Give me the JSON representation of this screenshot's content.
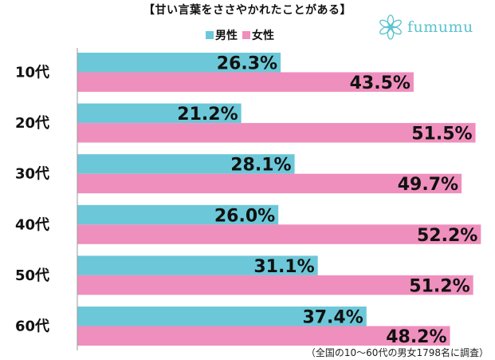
{
  "title": "【甘い言葉をささやかれたことがある】",
  "brand": "fumumu",
  "footnote": "（全国の10〜60代の男女1798名に調査）",
  "colors": {
    "male": "#6cc8d8",
    "female": "#ef8fbd"
  },
  "chart_data": {
    "type": "bar",
    "orientation": "horizontal",
    "categories": [
      "10代",
      "20代",
      "30代",
      "40代",
      "50代",
      "60代"
    ],
    "series": [
      {
        "name": "男性",
        "values": [
          26.3,
          21.2,
          28.1,
          26.0,
          31.1,
          37.4
        ]
      },
      {
        "name": "女性",
        "values": [
          43.5,
          51.5,
          49.7,
          52.2,
          51.2,
          48.2
        ]
      }
    ],
    "value_labels": {
      "男性": [
        "26.3%",
        "21.2%",
        "28.1%",
        "26.0%",
        "31.1%",
        "37.4%"
      ],
      "女性": [
        "43.5%",
        "51.5%",
        "49.7%",
        "52.2%",
        "51.2%",
        "48.2%"
      ]
    },
    "title": "【甘い言葉をささやかれたことがある】",
    "legend_position": "top",
    "grid": false
  }
}
